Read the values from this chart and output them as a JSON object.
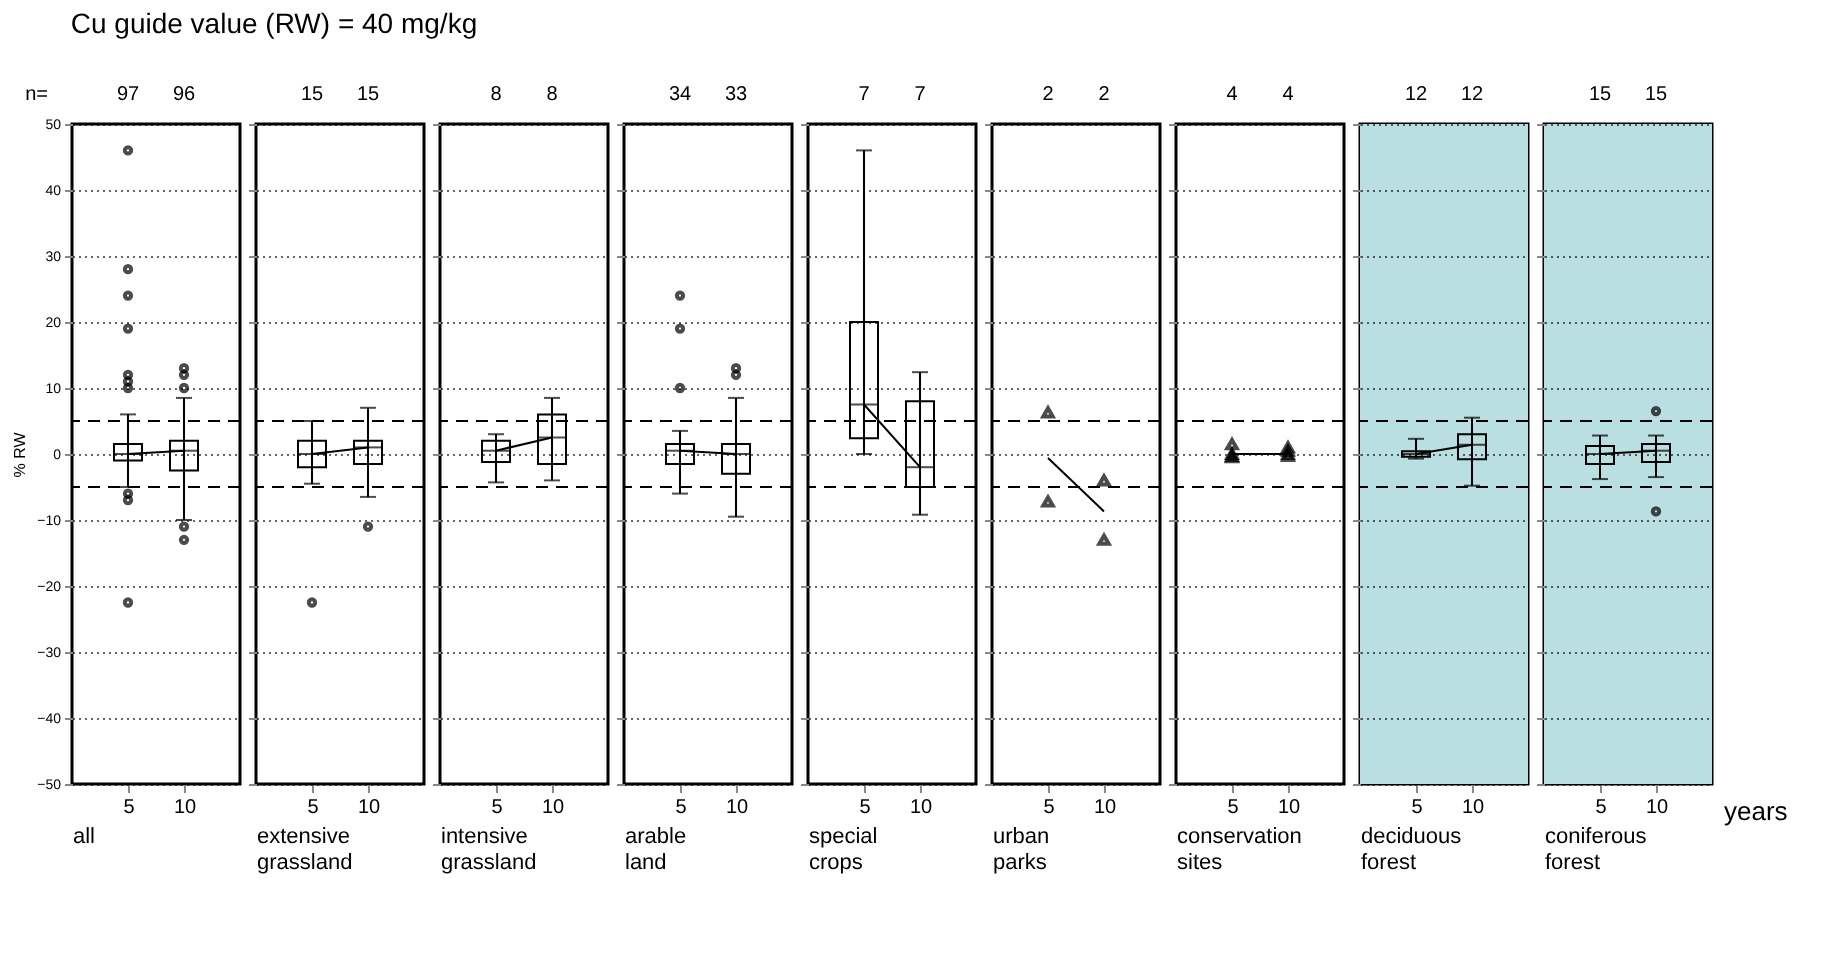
{
  "chart_data": [
    {
      "type": "box",
      "title": "Cu guide value (RW) = 40 mg/kg",
      "ylabel": "% RW",
      "xlabel": "all",
      "categories": [
        "5",
        "10"
      ],
      "ylim": [
        -50,
        50
      ],
      "yticks": [
        -50,
        -40,
        -30,
        -20,
        -10,
        0,
        10,
        20,
        30,
        40,
        50
      ],
      "grid": "y",
      "ref_lines": [
        {
          "axis": "y",
          "value": 5,
          "line_style": "dashed"
        },
        {
          "axis": "y",
          "value": -5,
          "line_style": "dashed"
        }
      ],
      "boxes": [
        {
          "low": -5,
          "q1": -1,
          "median": 0,
          "q3": 1.5,
          "high": 6,
          "outliers": [
            46,
            28,
            24,
            19,
            12,
            11,
            10,
            -6,
            -7,
            -22.5
          ]
        },
        {
          "low": -10,
          "q1": -2.5,
          "median": 0.5,
          "q3": 2,
          "high": 8.5,
          "outliers": [
            13,
            12,
            10,
            -11,
            -13
          ]
        }
      ],
      "series": [
        {
          "type": "line",
          "color": "#000000",
          "values": [
            0,
            0.5
          ]
        }
      ],
      "annotations": [
        "n=",
        "97",
        "96"
      ]
    },
    {
      "type": "box",
      "xlabel": "extensive grassland",
      "categories": [
        "5",
        "10"
      ],
      "ylim": [
        -50,
        50
      ],
      "yticks": [
        -50,
        -40,
        -30,
        -20,
        -10,
        0,
        10,
        20,
        30,
        40,
        50
      ],
      "grid": "y",
      "tick_labels": "x",
      "ref_lines": [
        {
          "axis": "y",
          "value": 5,
          "line_style": "dashed"
        },
        {
          "axis": "y",
          "value": -5,
          "line_style": "dashed"
        }
      ],
      "boxes": [
        {
          "low": -4.5,
          "q1": -2,
          "median": 0,
          "q3": 2,
          "high": 5,
          "outliers": [
            -22.5
          ]
        },
        {
          "low": -6.5,
          "q1": -1.5,
          "median": 1,
          "q3": 2,
          "high": 7,
          "outliers": [
            -11
          ]
        }
      ],
      "series": [
        {
          "type": "line",
          "color": "#000000",
          "values": [
            0,
            1
          ]
        }
      ],
      "annotations": [
        "15",
        "15"
      ]
    },
    {
      "type": "box",
      "xlabel": "intensive grassland",
      "categories": [
        "5",
        "10"
      ],
      "ylim": [
        -50,
        50
      ],
      "yticks": [
        -50,
        -40,
        -30,
        -20,
        -10,
        0,
        10,
        20,
        30,
        40,
        50
      ],
      "grid": "y",
      "tick_labels": "x",
      "ref_lines": [
        {
          "axis": "y",
          "value": 5,
          "line_style": "dashed"
        },
        {
          "axis": "y",
          "value": -5,
          "line_style": "dashed"
        }
      ],
      "boxes": [
        {
          "low": -4.3,
          "q1": -1.2,
          "median": 0.5,
          "q3": 2,
          "high": 3
        },
        {
          "low": -4,
          "q1": -1.5,
          "median": 2.5,
          "q3": 6,
          "high": 8.5
        }
      ],
      "series": [
        {
          "type": "line",
          "color": "#000000",
          "values": [
            0.5,
            2.5
          ]
        }
      ],
      "annotations": [
        "8",
        "8"
      ]
    },
    {
      "type": "box",
      "xlabel": "arable land",
      "categories": [
        "5",
        "10"
      ],
      "ylim": [
        -50,
        50
      ],
      "yticks": [
        -50,
        -40,
        -30,
        -20,
        -10,
        0,
        10,
        20,
        30,
        40,
        50
      ],
      "grid": "y",
      "tick_labels": "x",
      "ref_lines": [
        {
          "axis": "y",
          "value": 5,
          "line_style": "dashed"
        },
        {
          "axis": "y",
          "value": -5,
          "line_style": "dashed"
        }
      ],
      "boxes": [
        {
          "low": -6,
          "q1": -1.5,
          "median": 0.5,
          "q3": 1.5,
          "high": 3.5,
          "outliers": [
            24,
            19,
            10
          ]
        },
        {
          "low": -9.5,
          "q1": -3,
          "median": 0,
          "q3": 1.5,
          "high": 8.5,
          "outliers": [
            13,
            12
          ]
        }
      ],
      "series": [
        {
          "type": "line",
          "color": "#000000",
          "values": [
            0.5,
            0
          ]
        }
      ],
      "annotations": [
        "34",
        "33"
      ]
    },
    {
      "type": "box",
      "xlabel": "special crops",
      "categories": [
        "5",
        "10"
      ],
      "ylim": [
        -50,
        50
      ],
      "yticks": [
        -50,
        -40,
        -30,
        -20,
        -10,
        0,
        10,
        20,
        30,
        40,
        50
      ],
      "grid": "y",
      "tick_labels": "x",
      "ref_lines": [
        {
          "axis": "y",
          "value": 5,
          "line_style": "dashed"
        },
        {
          "axis": "y",
          "value": -5,
          "line_style": "dashed"
        }
      ],
      "boxes": [
        {
          "low": 0,
          "q1": 2.4,
          "median": 7.5,
          "q3": 20,
          "high": 46
        },
        {
          "low": -9.2,
          "q1": -5,
          "median": -2,
          "q3": 8,
          "high": 12.4
        }
      ],
      "series": [
        {
          "type": "line",
          "color": "#000000",
          "values": [
            7.5,
            -2
          ]
        }
      ],
      "annotations": [
        "7",
        "7"
      ]
    },
    {
      "type": "box",
      "xlabel": "urban parks",
      "categories": [
        "5",
        "10"
      ],
      "ylim": [
        -50,
        50
      ],
      "yticks": [
        -50,
        -40,
        -30,
        -20,
        -10,
        0,
        10,
        20,
        30,
        40,
        50
      ],
      "grid": "y",
      "tick_labels": "x",
      "ref_lines": [
        {
          "axis": "y",
          "value": 5,
          "line_style": "dashed"
        },
        {
          "axis": "y",
          "value": -5,
          "line_style": "dashed"
        }
      ],
      "series": [
        {
          "type": "line",
          "color": "#000000",
          "values": [
            -0.6,
            -8.7
          ]
        },
        {
          "type": "scatter",
          "color": "#000000",
          "marker": "triangle",
          "x": [
            "5",
            "5",
            "10",
            "10"
          ],
          "values": [
            6.3,
            -7.2,
            -4,
            -13
          ]
        }
      ],
      "annotations": [
        "2",
        "2"
      ]
    },
    {
      "type": "box",
      "xlabel": "conservation sites",
      "categories": [
        "5",
        "10"
      ],
      "ylim": [
        -50,
        50
      ],
      "yticks": [
        -50,
        -40,
        -30,
        -20,
        -10,
        0,
        10,
        20,
        30,
        40,
        50
      ],
      "grid": "y",
      "tick_labels": "x",
      "ref_lines": [
        {
          "axis": "y",
          "value": 5,
          "line_style": "dashed"
        },
        {
          "axis": "y",
          "value": -5,
          "line_style": "dashed"
        }
      ],
      "series": [
        {
          "type": "line",
          "color": "#000000",
          "values": [
            0,
            0
          ]
        },
        {
          "type": "scatter",
          "color": "#000000",
          "marker": "triangle",
          "x": [
            "5",
            "5",
            "5",
            "5",
            "10",
            "10",
            "10",
            "10"
          ],
          "values": [
            1.5,
            0,
            -0.3,
            -0.5,
            1,
            0.5,
            0,
            -0.3
          ]
        }
      ],
      "annotations": [
        "4",
        "4"
      ]
    },
    {
      "type": "box",
      "xlabel": "deciduous forest",
      "categories": [
        "5",
        "10"
      ],
      "ylim": [
        -50,
        50
      ],
      "yticks": [
        -50,
        -40,
        -30,
        -20,
        -10,
        0,
        10,
        20,
        30,
        40,
        50
      ],
      "grid": "y",
      "tick_labels": "x",
      "ref_lines": [
        {
          "axis": "y",
          "value": 5,
          "line_style": "dashed"
        },
        {
          "axis": "y",
          "value": -5,
          "line_style": "dashed"
        }
      ],
      "bands": [
        {
          "axis": "y",
          "from": -50,
          "to": 50,
          "color": "#b9dfe2"
        }
      ],
      "boxes": [
        {
          "low": -0.7,
          "q1": -0.4,
          "median": 0,
          "q3": 0.4,
          "high": 2.3
        },
        {
          "low": -4.8,
          "q1": -0.8,
          "median": 1.4,
          "q3": 3,
          "high": 5.5
        }
      ],
      "series": [
        {
          "type": "line",
          "color": "#000000",
          "values": [
            0,
            1.4
          ]
        }
      ],
      "annotations": [
        "12",
        "12"
      ]
    },
    {
      "type": "box",
      "xlabel": "coniferous forest",
      "categories": [
        "5",
        "10"
      ],
      "ylim": [
        -50,
        50
      ],
      "yticks": [
        -50,
        -40,
        -30,
        -20,
        -10,
        0,
        10,
        20,
        30,
        40,
        50
      ],
      "grid": "y",
      "tick_labels": "x",
      "ref_lines": [
        {
          "axis": "y",
          "value": 5,
          "line_style": "dashed"
        },
        {
          "axis": "y",
          "value": -5,
          "line_style": "dashed"
        }
      ],
      "bands": [
        {
          "axis": "y",
          "from": -50,
          "to": 50,
          "color": "#b9dfe2"
        }
      ],
      "boxes": [
        {
          "low": -3.8,
          "q1": -1.5,
          "median": 0,
          "q3": 1.2,
          "high": 2.8
        },
        {
          "low": -3.5,
          "q1": -1.2,
          "median": 0.5,
          "q3": 1.5,
          "high": 2.8,
          "outliers": [
            6.5,
            -8.7
          ]
        }
      ],
      "series": [
        {
          "type": "line",
          "color": "#000000",
          "values": [
            0,
            0.5
          ]
        }
      ],
      "annotations": [
        "15",
        "15",
        "years"
      ]
    }
  ]
}
